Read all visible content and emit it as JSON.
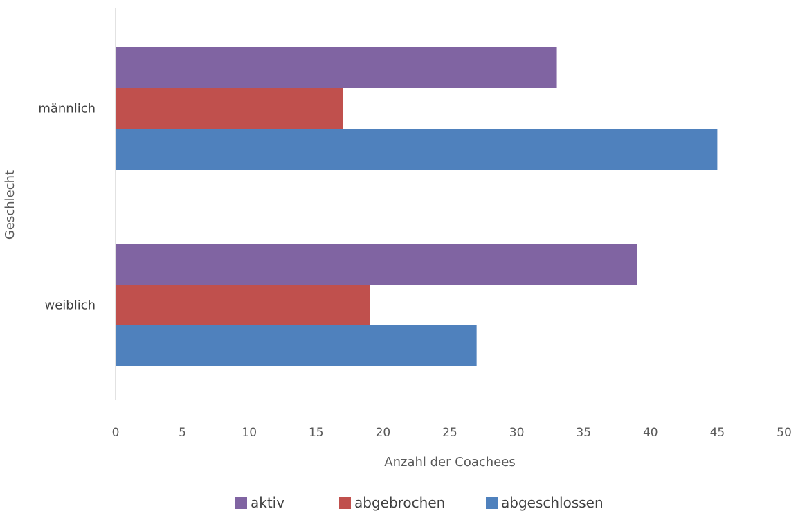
{
  "chart_data": {
    "type": "bar",
    "orientation": "horizontal",
    "categories": [
      "männlich",
      "weiblich"
    ],
    "series": [
      {
        "name": "aktiv",
        "values": [
          33,
          39
        ],
        "color": "#8064A2"
      },
      {
        "name": "abgebrochen",
        "values": [
          17,
          19
        ],
        "color": "#C0504D"
      },
      {
        "name": "abgeschlossen",
        "values": [
          45,
          27
        ],
        "color": "#4F81BD"
      }
    ],
    "xlabel": "Anzahl der Coachees",
    "ylabel": "Geschlecht",
    "xlim": [
      0,
      50
    ],
    "xticks": [
      "0",
      "5",
      "10",
      "15",
      "20",
      "25",
      "30",
      "35",
      "40",
      "45",
      "50"
    ],
    "grid": false,
    "legend": "bottom"
  }
}
